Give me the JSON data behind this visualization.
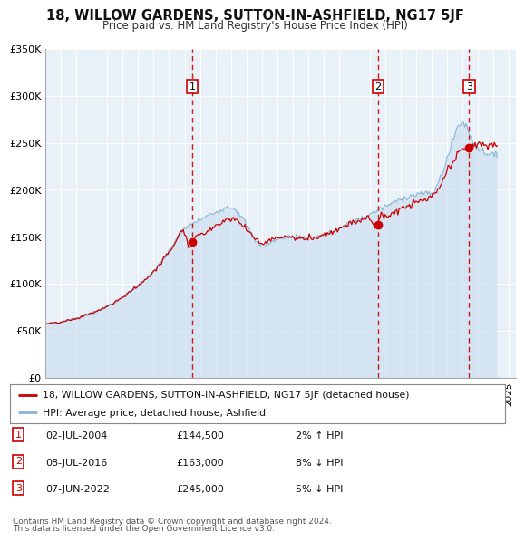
{
  "title": "18, WILLOW GARDENS, SUTTON-IN-ASHFIELD, NG17 5JF",
  "subtitle": "Price paid vs. HM Land Registry's House Price Index (HPI)",
  "legend_line1": "18, WILLOW GARDENS, SUTTON-IN-ASHFIELD, NG17 5JF (detached house)",
  "legend_line2": "HPI: Average price, detached house, Ashfield",
  "footer1": "Contains HM Land Registry data © Crown copyright and database right 2024.",
  "footer2": "This data is licensed under the Open Government Licence v3.0.",
  "transactions": [
    {
      "num": 1,
      "date": "02-JUL-2004",
      "price": 144500,
      "pct": "2%",
      "dir": "↑"
    },
    {
      "num": 2,
      "date": "08-JUL-2016",
      "price": 163000,
      "pct": "8%",
      "dir": "↓"
    },
    {
      "num": 3,
      "date": "07-JUN-2022",
      "price": 245000,
      "pct": "5%",
      "dir": "↓"
    }
  ],
  "transaction_dates_decimal": [
    2004.5,
    2016.54,
    2022.44
  ],
  "transaction_prices": [
    144500,
    163000,
    245000
  ],
  "hpi_line_color": "#8ab4d4",
  "hpi_fill_color": "#c8ddf0",
  "price_line_color": "#cc0000",
  "bg_color": "#e8f0f8",
  "plot_bg": "#e8f0f8",
  "grid_color": "#ffffff",
  "dashed_color": "#cc0000",
  "ylim": [
    0,
    350000
  ],
  "xlim_start": 1995.0,
  "xlim_end": 2025.5,
  "yticks": [
    0,
    50000,
    100000,
    150000,
    200000,
    250000,
    300000,
    350000
  ],
  "ytick_labels": [
    "£0",
    "£50K",
    "£100K",
    "£150K",
    "£200K",
    "£250K",
    "£300K",
    "£350K"
  ],
  "xticks": [
    1995,
    1996,
    1997,
    1998,
    1999,
    2000,
    2001,
    2002,
    2003,
    2004,
    2005,
    2006,
    2007,
    2008,
    2009,
    2010,
    2011,
    2012,
    2013,
    2014,
    2015,
    2016,
    2017,
    2018,
    2019,
    2020,
    2021,
    2022,
    2023,
    2024,
    2025
  ]
}
